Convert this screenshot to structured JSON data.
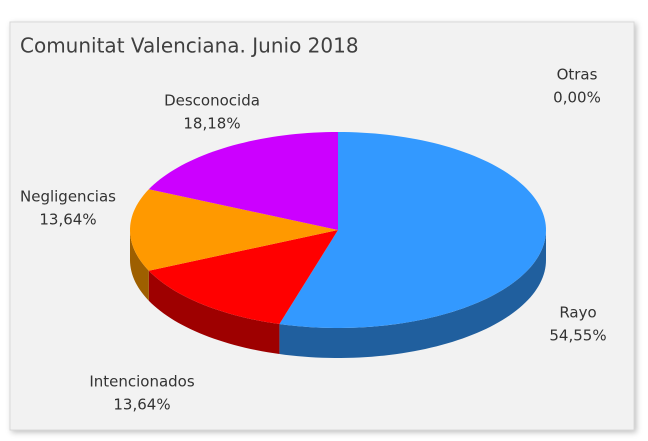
{
  "chart_data": {
    "type": "pie",
    "title": "Comunitat Valenciana. Junio 2018",
    "categories": [
      "Rayo",
      "Intencionados",
      "Negligencias",
      "Desconocida",
      "Otras"
    ],
    "values": [
      54.55,
      13.64,
      13.64,
      18.18,
      0
    ],
    "value_labels": [
      "54,55%",
      "13,64%",
      "13,64%",
      "18,18%",
      "0,00%"
    ],
    "colors": [
      "#3399ff",
      "#ff0000",
      "#ff9900",
      "#cc00ff",
      "#99cc00"
    ]
  }
}
